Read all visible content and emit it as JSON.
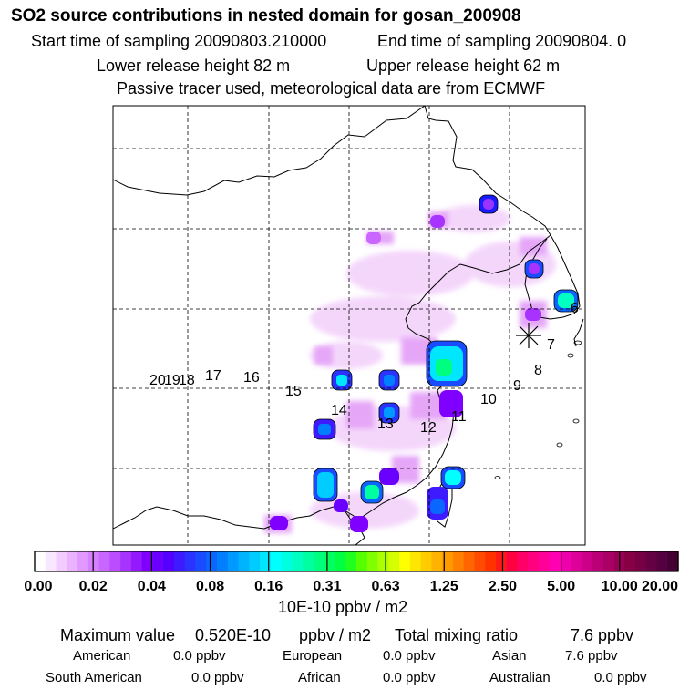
{
  "header": {
    "title": "SO2 source contributions in nested domain for gosan_200908",
    "start_label": "Start time of sampling 20090803.210000",
    "end_label": "End time of sampling 20090804.     0",
    "lower_label": "Lower release height   82 m",
    "upper_label": "Upper release height   62 m",
    "note": "Passive tracer used, meteorological data are from ECMWF"
  },
  "map": {
    "trajectory_labels": [
      "6",
      "7",
      "8",
      "9",
      "10",
      "11",
      "12",
      "13",
      "14",
      "15",
      "16",
      "17",
      "18",
      "19",
      "20"
    ],
    "receptor": "gosan"
  },
  "chart_data": {
    "type": "heatmap",
    "title": "SO2 source contributions in nested domain for gosan_200908",
    "colorbar": {
      "tick_labels": [
        "0.00",
        "0.02",
        "0.04",
        "0.08",
        "0.16",
        "0.31",
        "0.63",
        "1.25",
        "2.50",
        "5.00",
        "10.00",
        "20.00"
      ],
      "units": "10E-10 ppbv / m2",
      "colors": [
        "#ffffff",
        "#f9e6ff",
        "#f2ccff",
        "#ebb3ff",
        "#e299ff",
        "#d580ff",
        "#c866ff",
        "#bb4cff",
        "#a833ff",
        "#9519ff",
        "#8000ff",
        "#6a00ff",
        "#5500ff",
        "#3d1aff",
        "#2a33ff",
        "#1a4cff",
        "#0a66ff",
        "#0080ff",
        "#0099ff",
        "#00b3ff",
        "#00ccff",
        "#00e6ff",
        "#00ffff",
        "#00ffe0",
        "#00ffc0",
        "#00ffa0",
        "#00ff80",
        "#00ff60",
        "#00ff40",
        "#20ff20",
        "#55ff00",
        "#80ff00",
        "#aaff00",
        "#d5ff00",
        "#ffff00",
        "#ffe600",
        "#ffcc00",
        "#ffb300",
        "#ff9900",
        "#ff8000",
        "#ff6600",
        "#ff4c00",
        "#ff3300",
        "#ff1a1a",
        "#ff0040",
        "#ff0066",
        "#ff0080",
        "#ff0099",
        "#ff00b3",
        "#ee00aa",
        "#dd0099",
        "#cc0088",
        "#bb0077",
        "#aa0066",
        "#990055",
        "#880044",
        "#770044",
        "#660044",
        "#550040",
        "#440033"
      ]
    },
    "summary": {
      "max_label": "Maximum value",
      "max_value": "0.520E-10",
      "max_unit": "ppbv / m2",
      "total_label": "Total mixing ratio",
      "total_value": "7.6 ppbv"
    },
    "regions": [
      {
        "name": "American",
        "value": "0.0 ppbv"
      },
      {
        "name": "European",
        "value": "0.0 ppbv"
      },
      {
        "name": "Asian",
        "value": "7.6 ppbv"
      },
      {
        "name": "South American",
        "value": "0.0 ppbv"
      },
      {
        "name": "African",
        "value": "0.0 ppbv"
      },
      {
        "name": "Australian",
        "value": "0.0 ppbv"
      }
    ]
  }
}
